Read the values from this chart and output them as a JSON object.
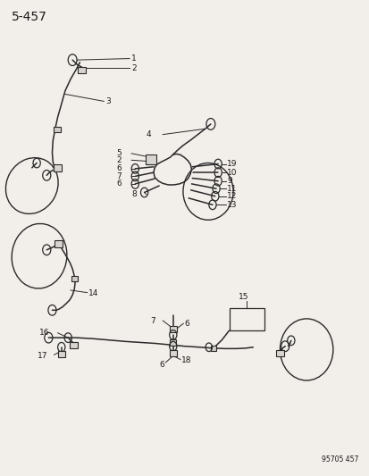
{
  "title": "5-457",
  "watermark": "95705 457",
  "background_color": "#f2eeea",
  "line_color": "#2a2a2a",
  "text_color": "#1a1a1a",
  "figsize": [
    4.14,
    5.33
  ],
  "dpi": 100
}
